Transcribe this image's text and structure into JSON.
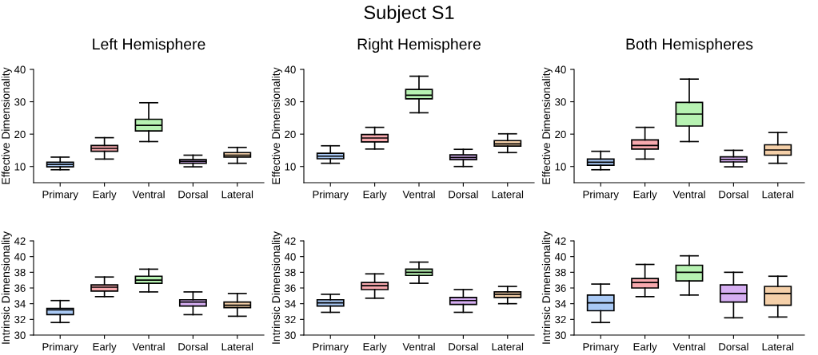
{
  "chart_data": [
    {
      "type": "box",
      "title": "Left Hemisphere",
      "annotations": [
        "Subject S1"
      ],
      "ylabel": "Effective Dimensionality",
      "categories": [
        "Primary",
        "Early",
        "Ventral",
        "Dorsal",
        "Lateral"
      ],
      "colors": [
        "#a9c9f5",
        "#f7a9ae",
        "#b7f2b2",
        "#d6aef2",
        "#f5d0a9"
      ],
      "ylim": [
        5,
        40
      ],
      "yticks": [
        10,
        20,
        30,
        40
      ],
      "grid": false,
      "legend": false,
      "boxes": [
        {
          "low": 9,
          "q1": 9.9,
          "median": 10.6,
          "q3": 11.3,
          "high": 12.9
        },
        {
          "low": 12.3,
          "q1": 14.7,
          "median": 15.6,
          "q3": 16.5,
          "high": 18.9
        },
        {
          "low": 17.7,
          "q1": 21,
          "median": 22.7,
          "q3": 24.6,
          "high": 29.7
        },
        {
          "low": 9.9,
          "q1": 11,
          "median": 11.6,
          "q3": 12.1,
          "high": 13.5
        },
        {
          "low": 11,
          "q1": 12.9,
          "median": 13.5,
          "q3": 14.3,
          "high": 15.9
        }
      ]
    },
    {
      "type": "box",
      "title": "Right Hemisphere",
      "ylabel": "Effective Dimensionality",
      "categories": [
        "Primary",
        "Early",
        "Ventral",
        "Dorsal",
        "Lateral"
      ],
      "colors": [
        "#a9c9f5",
        "#f7a9ae",
        "#b7f2b2",
        "#d6aef2",
        "#f5d0a9"
      ],
      "ylim": [
        5,
        40
      ],
      "yticks": [
        10,
        20,
        30,
        40
      ],
      "grid": false,
      "legend": false,
      "boxes": [
        {
          "low": 11,
          "q1": 12.4,
          "median": 13.2,
          "q3": 14.1,
          "high": 16.4
        },
        {
          "low": 15.4,
          "q1": 17.6,
          "median": 18.8,
          "q3": 19.9,
          "high": 22.1
        },
        {
          "low": 26.6,
          "q1": 30.9,
          "median": 32,
          "q3": 33.8,
          "high": 37.9
        },
        {
          "low": 10,
          "q1": 12.1,
          "median": 12.8,
          "q3": 13.6,
          "high": 15.3
        },
        {
          "low": 14.3,
          "q1": 16.3,
          "median": 17,
          "q3": 18,
          "high": 20.1
        }
      ]
    },
    {
      "type": "box",
      "title": "Both Hemispheres",
      "ylabel": "Effective Dimensionality",
      "categories": [
        "Primary",
        "Early",
        "Ventral",
        "Dorsal",
        "Lateral"
      ],
      "colors": [
        "#a9c9f5",
        "#f7a9ae",
        "#b7f2b2",
        "#d6aef2",
        "#f5d0a9"
      ],
      "ylim": [
        5,
        40
      ],
      "yticks": [
        10,
        20,
        30,
        40
      ],
      "grid": false,
      "legend": false,
      "boxes": [
        {
          "low": 9,
          "q1": 10.4,
          "median": 11.3,
          "q3": 12.3,
          "high": 14.7
        },
        {
          "low": 12.3,
          "q1": 15.4,
          "median": 16.5,
          "q3": 18.2,
          "high": 22.1
        },
        {
          "low": 17.7,
          "q1": 22.5,
          "median": 26.2,
          "q3": 29.8,
          "high": 37
        },
        {
          "low": 9.9,
          "q1": 11.4,
          "median": 12.2,
          "q3": 13,
          "high": 15
        },
        {
          "low": 11,
          "q1": 13.5,
          "median": 15.1,
          "q3": 16.7,
          "high": 20.5
        }
      ]
    },
    {
      "type": "box",
      "ylabel": "Intrinsic Dimensionality",
      "categories": [
        "Primary",
        "Early",
        "Ventral",
        "Dorsal",
        "Lateral"
      ],
      "colors": [
        "#a9c9f5",
        "#f7a9ae",
        "#b7f2b2",
        "#d6aef2",
        "#f5d0a9"
      ],
      "ylim": [
        30,
        42
      ],
      "yticks": [
        30,
        32,
        34,
        36,
        38,
        40,
        42
      ],
      "grid": false,
      "legend": false,
      "boxes": [
        {
          "low": 31.6,
          "q1": 32.6,
          "median": 33.2,
          "q3": 33.4,
          "high": 34.4
        },
        {
          "low": 34.9,
          "q1": 35.6,
          "median": 36.1,
          "q3": 36.4,
          "high": 37.4
        },
        {
          "low": 35.5,
          "q1": 36.6,
          "median": 37,
          "q3": 37.5,
          "high": 38.4
        },
        {
          "low": 32.6,
          "q1": 33.7,
          "median": 34.2,
          "q3": 34.5,
          "high": 35.5
        },
        {
          "low": 32.4,
          "q1": 33.5,
          "median": 33.8,
          "q3": 34.2,
          "high": 35.3
        }
      ]
    },
    {
      "type": "box",
      "ylabel": "Intrinsic Dimensionality",
      "categories": [
        "Primary",
        "Early",
        "Ventral",
        "Dorsal",
        "Lateral"
      ],
      "colors": [
        "#a9c9f5",
        "#f7a9ae",
        "#b7f2b2",
        "#d6aef2",
        "#f5d0a9"
      ],
      "ylim": [
        30,
        42
      ],
      "yticks": [
        30,
        32,
        34,
        36,
        38,
        40,
        42
      ],
      "grid": false,
      "legend": false,
      "boxes": [
        {
          "low": 32.9,
          "q1": 33.7,
          "median": 34.1,
          "q3": 34.5,
          "high": 35.2
        },
        {
          "low": 34.7,
          "q1": 35.8,
          "median": 36.3,
          "q3": 36.7,
          "high": 37.8
        },
        {
          "low": 36.6,
          "q1": 37.6,
          "median": 38,
          "q3": 38.4,
          "high": 39.3
        },
        {
          "low": 32.9,
          "q1": 33.9,
          "median": 34.4,
          "q3": 34.8,
          "high": 35.8
        },
        {
          "low": 34,
          "q1": 34.8,
          "median": 35.2,
          "q3": 35.5,
          "high": 36.2
        }
      ]
    },
    {
      "type": "box",
      "ylabel": "Intrinsic Dimensionality",
      "categories": [
        "Primary",
        "Early",
        "Ventral",
        "Dorsal",
        "Lateral"
      ],
      "colors": [
        "#a9c9f5",
        "#f7a9ae",
        "#b7f2b2",
        "#d6aef2",
        "#f5d0a9"
      ],
      "ylim": [
        30,
        42
      ],
      "yticks": [
        30,
        32,
        34,
        36,
        38,
        40,
        42
      ],
      "grid": false,
      "legend": false,
      "boxes": [
        {
          "low": 31.6,
          "q1": 33.1,
          "median": 34.1,
          "q3": 35.1,
          "high": 36.5
        },
        {
          "low": 34.9,
          "q1": 36,
          "median": 36.7,
          "q3": 37.2,
          "high": 39
        },
        {
          "low": 35.1,
          "q1": 36.9,
          "median": 38,
          "q3": 38.9,
          "high": 40.1
        },
        {
          "low": 32.2,
          "q1": 34.2,
          "median": 35.3,
          "q3": 36.4,
          "high": 38
        },
        {
          "low": 32.3,
          "q1": 33.8,
          "median": 35.3,
          "q3": 36.2,
          "high": 37.5
        }
      ]
    }
  ]
}
